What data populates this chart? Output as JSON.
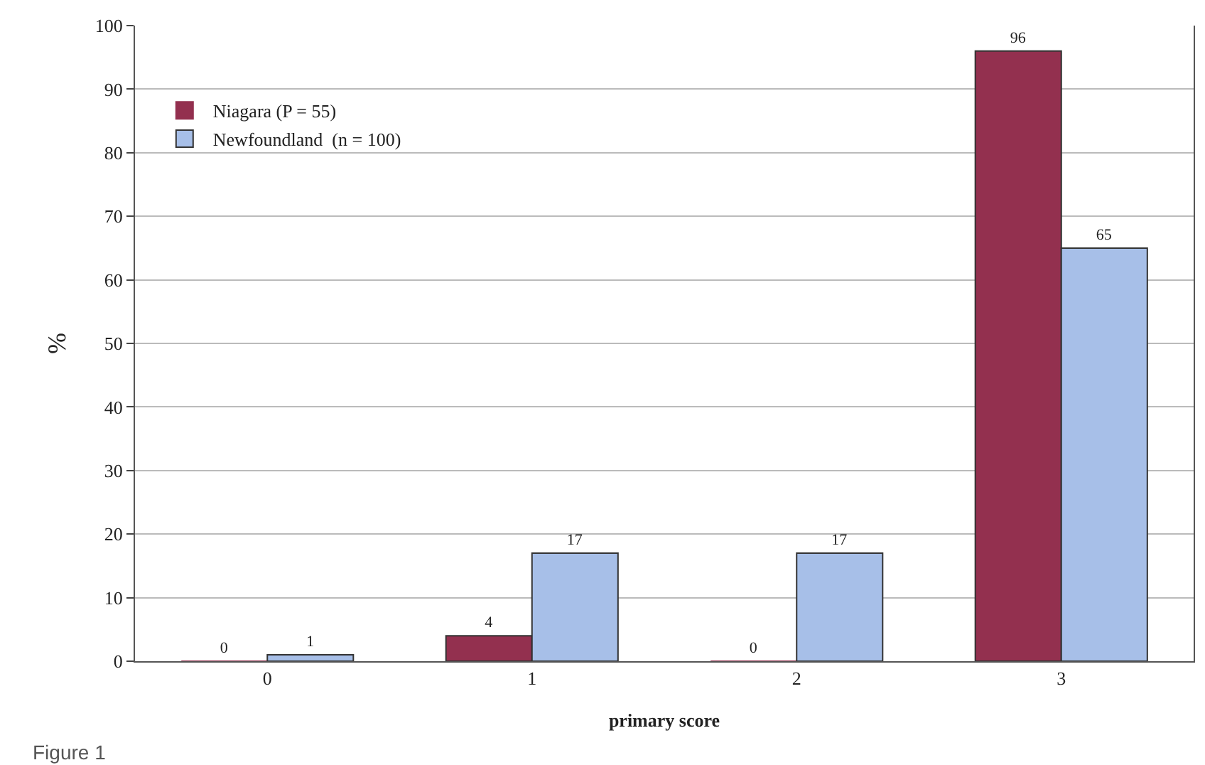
{
  "chart_data": {
    "type": "bar",
    "xlabel": "primary score",
    "ylabel": "%",
    "categories": [
      "0",
      "1",
      "2",
      "3"
    ],
    "series": [
      {
        "name": "Niagara (P = 55)",
        "color": "#93304f",
        "values": [
          0,
          4,
          0,
          96
        ]
      },
      {
        "name": "Newfoundland  (n = 100)",
        "color": "#a7bfe8",
        "values": [
          1,
          17,
          17,
          65
        ]
      }
    ],
    "ylim": [
      0,
      100
    ],
    "yticks": [
      0,
      10,
      20,
      30,
      40,
      50,
      60,
      70,
      80,
      90,
      100
    ],
    "grid": "y",
    "legend": "top left",
    "data_labels": true,
    "annotations": [
      "Figure 1"
    ]
  }
}
